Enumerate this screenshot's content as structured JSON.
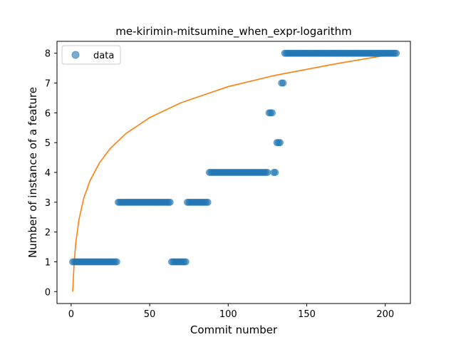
{
  "chart_data": {
    "type": "scatter",
    "title": "me-kirimin-mitsumine_when_expr-logarithm",
    "xlabel": "Commit number",
    "ylabel": "Number of instance of a feature",
    "xlim": [
      -9,
      216
    ],
    "ylim": [
      -0.4,
      8.4
    ],
    "xticks": [
      0,
      50,
      100,
      150,
      200
    ],
    "yticks": [
      0,
      1,
      2,
      3,
      4,
      5,
      6,
      7,
      8
    ],
    "legend": {
      "position": "top-left",
      "entries": [
        "data"
      ]
    },
    "colors": {
      "points": "#1f77b4",
      "fit": "#ff7f0e"
    },
    "series": [
      {
        "name": "data",
        "kind": "scatter",
        "segments": [
          {
            "x_start": 1,
            "x_end": 29,
            "y": 1
          },
          {
            "x_start": 30,
            "x_end": 63,
            "y": 3
          },
          {
            "x_start": 64,
            "x_end": 73,
            "y": 1
          },
          {
            "x_start": 74,
            "x_end": 87,
            "y": 3
          },
          {
            "x_start": 88,
            "x_end": 125,
            "y": 4
          },
          {
            "x_start": 126,
            "x_end": 128,
            "y": 6
          },
          {
            "x_start": 129,
            "x_end": 130,
            "y": 4
          },
          {
            "x_start": 131,
            "x_end": 133,
            "y": 5
          },
          {
            "x_start": 134,
            "x_end": 135,
            "y": 7
          },
          {
            "x_start": 136,
            "x_end": 207,
            "y": 8
          }
        ]
      },
      {
        "kind": "line",
        "x": [
          1,
          2,
          3,
          5,
          8,
          12,
          18,
          25,
          35,
          50,
          70,
          100,
          130,
          170,
          207
        ],
        "y": [
          0.0,
          1.04,
          1.65,
          2.42,
          3.13,
          3.72,
          4.32,
          4.81,
          5.31,
          5.84,
          6.34,
          6.88,
          7.26,
          7.66,
          7.99
        ]
      }
    ]
  }
}
